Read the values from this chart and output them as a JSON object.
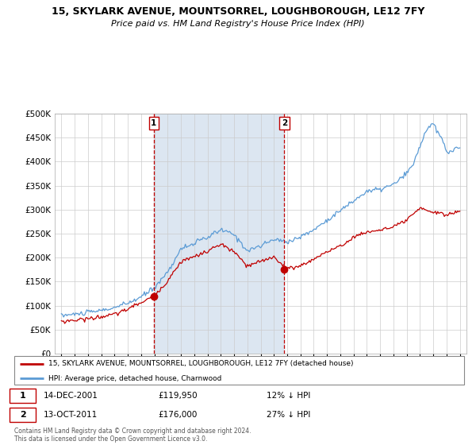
{
  "title1": "15, SKYLARK AVENUE, MOUNTSORREL, LOUGHBOROUGH, LE12 7FY",
  "title2": "Price paid vs. HM Land Registry's House Price Index (HPI)",
  "legend_line1": "15, SKYLARK AVENUE, MOUNTSORREL, LOUGHBOROUGH, LE12 7FY (detached house)",
  "legend_line2": "HPI: Average price, detached house, Charnwood",
  "label1_date": "14-DEC-2001",
  "label1_price": "£119,950",
  "label1_hpi": "12% ↓ HPI",
  "label2_date": "13-OCT-2011",
  "label2_price": "£176,000",
  "label2_hpi": "27% ↓ HPI",
  "footer": "Contains HM Land Registry data © Crown copyright and database right 2024.\nThis data is licensed under the Open Government Licence v3.0.",
  "hpi_color": "#5b9bd5",
  "price_color": "#c00000",
  "background_color": "#ffffff",
  "shaded_color": "#dce6f1",
  "marker1_x": 2001.96,
  "marker1_y": 119950,
  "marker2_x": 2011.79,
  "marker2_y": 176000,
  "vline1_x": 2001.96,
  "vline2_x": 2011.79,
  "ylim": [
    0,
    500000
  ],
  "xlim": [
    1994.5,
    2025.5
  ]
}
